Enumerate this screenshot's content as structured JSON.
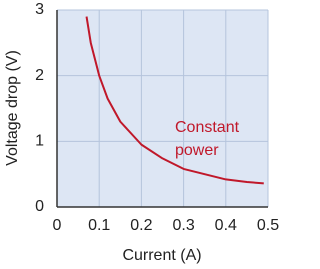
{
  "chart_data": {
    "type": "line",
    "x_label": "Current (A)",
    "y_label": "Voltage drop (V)",
    "annotation_lines": [
      "Constant",
      "power"
    ],
    "x": [
      0.07,
      0.08,
      0.1,
      0.12,
      0.15,
      0.2,
      0.25,
      0.3,
      0.35,
      0.4,
      0.45,
      0.49
    ],
    "series": [
      {
        "name": "Constant power",
        "color": "#c0182a",
        "values": [
          2.9,
          2.5,
          2.0,
          1.65,
          1.3,
          0.95,
          0.74,
          0.58,
          0.5,
          0.42,
          0.38,
          0.36
        ]
      }
    ],
    "xlim": [
      0,
      0.5
    ],
    "ylim": [
      0,
      3
    ],
    "xticks": [
      0,
      0.1,
      0.2,
      0.3,
      0.4,
      0.5
    ],
    "yticks": [
      0,
      1,
      2,
      3
    ],
    "grid": true
  }
}
